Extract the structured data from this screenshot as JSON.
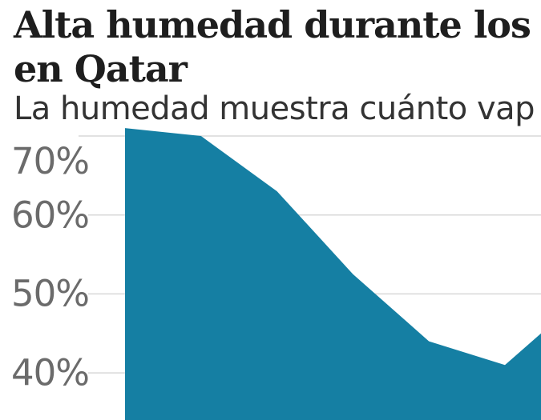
{
  "header": {
    "title_line1": "Alta humedad durante los",
    "title_line2": "en Qatar",
    "subtitle": "La humedad muestra cuánto vap"
  },
  "chart_data": {
    "type": "area",
    "title": "Alta humedad durante los … en Qatar",
    "subtitle": "La humedad muestra cuánto va…",
    "series": [
      {
        "name": "Humedad",
        "values": [
          71,
          70,
          63,
          52.5,
          44,
          41
        ]
      }
    ],
    "right_edge_partial_value": 45,
    "x_labels_visible": false,
    "y_ticks": [
      {
        "label": "70%",
        "value": 70
      },
      {
        "label": "60%",
        "value": 60
      },
      {
        "label": "50%",
        "value": 50
      },
      {
        "label": "40%",
        "value": 40
      }
    ],
    "ylim_visible": [
      37,
      72
    ],
    "grid": "horizontal",
    "legend": "none",
    "area_color": "#157fa3",
    "gridline_color": "#d8d8d8",
    "tick_label_color": "#6b6b6b"
  }
}
